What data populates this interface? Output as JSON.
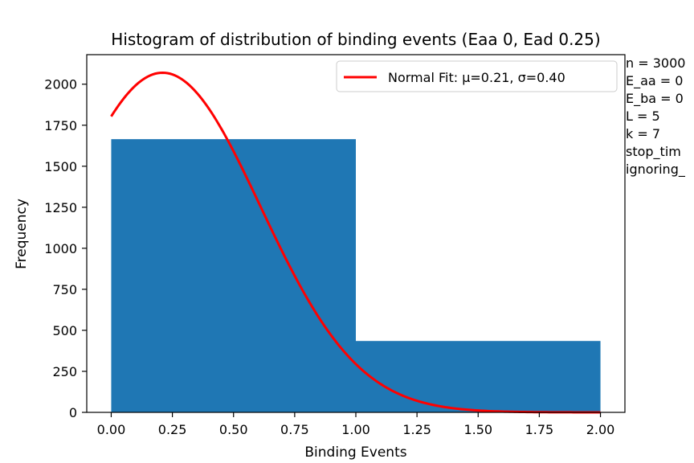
{
  "chart_data": {
    "type": "bar",
    "title": "Histogram of distribution of binding events (Eaa 0, Ead 0.25)",
    "xlabel": "Binding Events",
    "ylabel": "Frequency",
    "bins": [
      {
        "start": 0.0,
        "end": 1.0,
        "value": 1665
      },
      {
        "start": 1.0,
        "end": 2.0,
        "value": 435
      }
    ],
    "xlim": [
      -0.1,
      2.1
    ],
    "ylim": [
      0,
      2180
    ],
    "xticks": [
      0.0,
      0.25,
      0.5,
      0.75,
      1.0,
      1.25,
      1.5,
      1.75,
      2.0
    ],
    "xtick_labels": [
      "0.00",
      "0.25",
      "0.50",
      "0.75",
      "1.00",
      "1.25",
      "1.50",
      "1.75",
      "2.00"
    ],
    "yticks": [
      0,
      250,
      500,
      750,
      1000,
      1250,
      1500,
      1750,
      2000
    ],
    "ytick_labels": [
      "0",
      "250",
      "500",
      "750",
      "1000",
      "1250",
      "1500",
      "1750",
      "2000"
    ],
    "bar_color": "#1f77b4",
    "fit": {
      "label": "Normal Fit: μ=0.21, σ=0.40",
      "mu": 0.21,
      "sigma": 0.4,
      "peak_value": 2070,
      "x_range": [
        0.0,
        2.0
      ],
      "color": "#ff0000"
    },
    "legend_position": "top-right",
    "grid": false
  },
  "side_text": [
    "n = 3000",
    "E_aa = 0",
    "E_ba = 0",
    "L = 5",
    "k = 7",
    "stop_tim",
    "ignoring_"
  ]
}
